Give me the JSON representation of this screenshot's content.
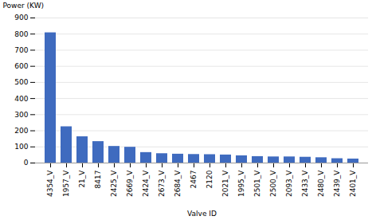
{
  "chart_data": {
    "type": "bar",
    "categories": [
      "4354_V",
      "1957_V",
      "21_V",
      "8417",
      "2425_V",
      "2669_V",
      "2424_V",
      "2673_V",
      "2684_V",
      "2467",
      "2120",
      "2021_V",
      "1995_V",
      "2501_V",
      "2500_V",
      "2093_V",
      "2433_V",
      "2480_V",
      "2439_V",
      "2401_V"
    ],
    "values": [
      808,
      225,
      163,
      133,
      103,
      98,
      65,
      58,
      55,
      53,
      52,
      50,
      45,
      40,
      38,
      38,
      36,
      33,
      27,
      25
    ],
    "color": "#3f6bbf",
    "xlabel": "Valve ID",
    "ylabel": "Power (KW)",
    "ylim": [
      0,
      900
    ],
    "yticks": [
      0,
      100,
      200,
      300,
      400,
      500,
      600,
      700,
      800,
      900
    ],
    "grid": true
  }
}
